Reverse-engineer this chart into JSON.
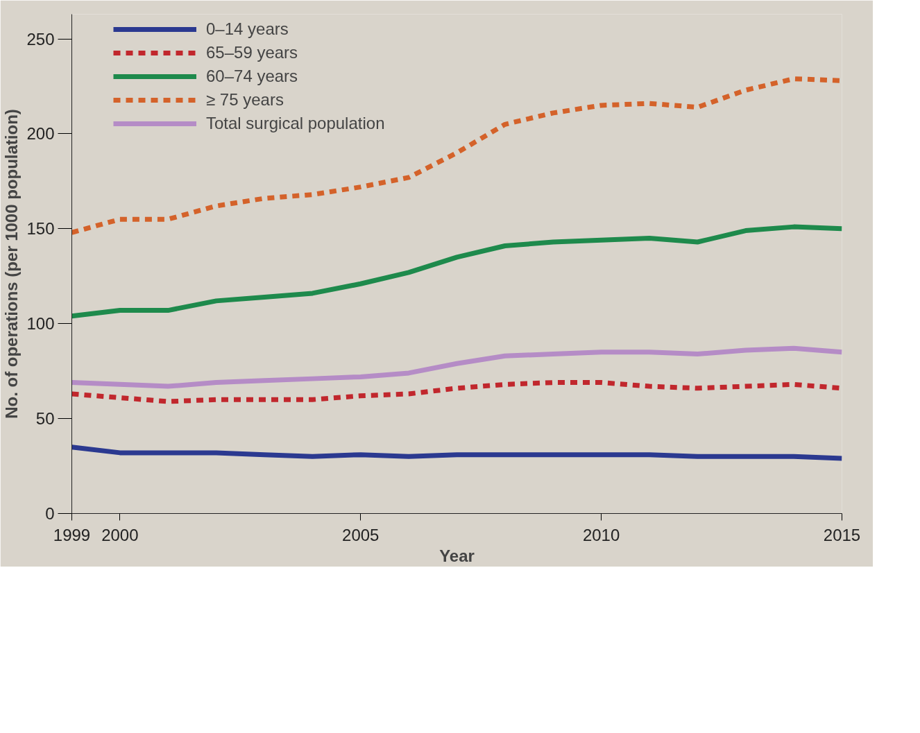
{
  "chart_data": {
    "type": "line",
    "xlabel": "Year",
    "ylabel": "No. of operations (per 1000 population)",
    "x": [
      1999,
      2000,
      2001,
      2002,
      2003,
      2004,
      2005,
      2006,
      2007,
      2008,
      2009,
      2010,
      2011,
      2012,
      2013,
      2014,
      2015
    ],
    "series": [
      {
        "name": "0–14 years",
        "color": "#2b3990",
        "line_style": "solid",
        "values": [
          35,
          32,
          32,
          32,
          31,
          30,
          31,
          30,
          31,
          31,
          31,
          31,
          31,
          30,
          30,
          30,
          29
        ]
      },
      {
        "name": "65–59 years",
        "color": "#c1272d",
        "line_style": "dashed",
        "values": [
          63,
          61,
          59,
          60,
          60,
          60,
          62,
          63,
          66,
          68,
          69,
          69,
          67,
          66,
          67,
          68,
          66
        ]
      },
      {
        "name": "60–74 years",
        "color": "#1e8a4c",
        "line_style": "solid",
        "values": [
          104,
          107,
          107,
          112,
          114,
          116,
          121,
          127,
          135,
          141,
          143,
          144,
          145,
          143,
          149,
          151,
          150
        ]
      },
      {
        "name": "≥ 75 years",
        "color": "#d4622a",
        "line_style": "dashed",
        "values": [
          148,
          155,
          155,
          162,
          166,
          168,
          172,
          177,
          190,
          205,
          211,
          215,
          216,
          214,
          223,
          229,
          228
        ]
      },
      {
        "name": "Total surgical population",
        "color": "#b58cc6",
        "line_style": "solid",
        "values": [
          69,
          68,
          67,
          69,
          70,
          71,
          72,
          74,
          79,
          83,
          84,
          85,
          85,
          84,
          86,
          87,
          85
        ]
      }
    ],
    "xlim": [
      1999,
      2015
    ],
    "ylim": [
      0,
      263
    ],
    "xticks": [
      1999,
      2000,
      2005,
      2010,
      2015
    ],
    "yticks": [
      0,
      50,
      100,
      150,
      200,
      250
    ],
    "grid": false,
    "legend": "top left"
  }
}
